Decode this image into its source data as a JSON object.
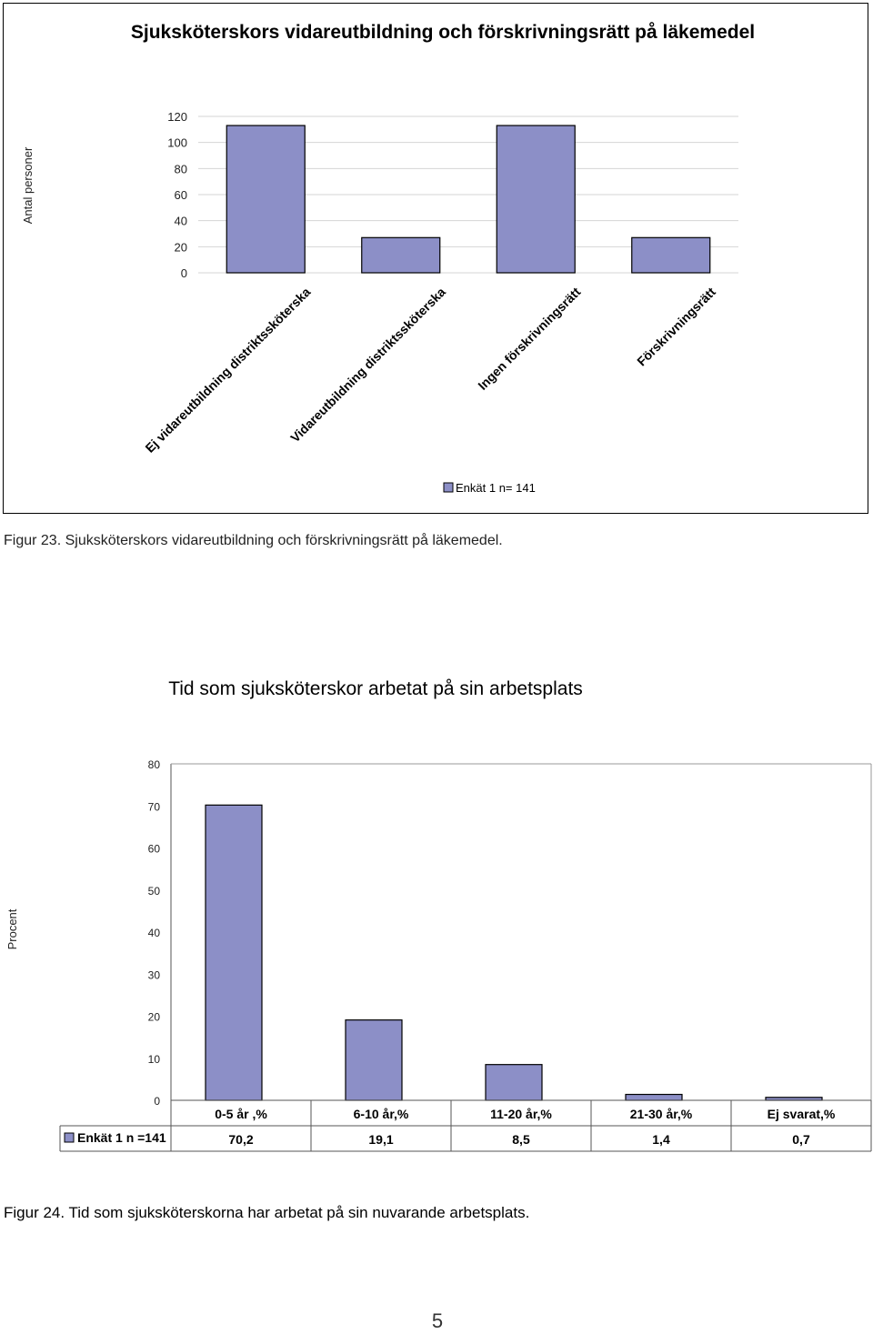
{
  "page": {
    "page_number": "5"
  },
  "figure23": {
    "label": "Figur 23.",
    "text": "Sjuksköterskors vidareutbildning och förskrivningsrätt på läkemedel."
  },
  "figure24": {
    "label": "Figur 24.",
    "text": "Tid som sjuksköterskorna har arbetat på sin nuvarande arbetsplats."
  },
  "chart_data": [
    {
      "type": "bar",
      "title": "Sjuksköterskors vidareutbildning och förskrivningsrätt på läkemedel",
      "ylabel": "Antal personer",
      "xlabel": "",
      "categories": [
        "Ej vidareutbildning distriktssköterska",
        "Vidareutbildning distriktssköterska",
        "Ingen förskrivningsrätt",
        "Förskrivningsrätt"
      ],
      "series": [
        {
          "name": "Enkät 1 n= 141",
          "values": [
            113,
            27,
            113,
            27
          ]
        }
      ],
      "ylim": [
        0,
        120
      ],
      "yticks": [
        "0",
        "20",
        "40",
        "60",
        "80",
        "100",
        "120"
      ],
      "grid": true,
      "legend": "bottom",
      "bar_color": "#8c8fc7"
    },
    {
      "type": "bar",
      "title": "Tid som sjuksköterskor arbetat på sin arbetsplats",
      "ylabel": "Procent",
      "xlabel": "",
      "categories": [
        "0-5 år ,%",
        "6-10 år,%",
        "11-20 år,%",
        "21-30 år,%",
        "Ej svarat,%"
      ],
      "series": [
        {
          "name": "Enkät 1 n =141",
          "values": [
            70.2,
            19.1,
            8.5,
            1.4,
            0.7
          ],
          "value_labels": [
            "70,2",
            "19,1",
            "8,5",
            "1,4",
            "0,7"
          ]
        }
      ],
      "ylim": [
        0,
        80
      ],
      "yticks": [
        "0",
        "10",
        "20",
        "30",
        "40",
        "50",
        "60",
        "70",
        "80"
      ],
      "grid": false,
      "legend": "data table",
      "bar_color": "#8c8fc7"
    }
  ]
}
